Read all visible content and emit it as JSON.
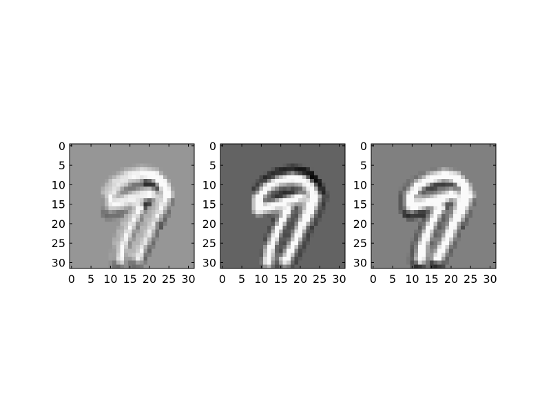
{
  "chart_data": [
    {
      "type": "heatmap",
      "title": "",
      "xlabel": "",
      "ylabel": "",
      "xlim": [
        -0.5,
        31.5
      ],
      "ylim": [
        31.5,
        -0.5
      ],
      "xticks": [
        "0",
        "5",
        "10",
        "15",
        "20",
        "25",
        "30"
      ],
      "yticks": [
        "0",
        "5",
        "10",
        "15",
        "20",
        "25",
        "30"
      ],
      "grid": false,
      "colormap": "gray",
      "background_level": 0.59,
      "content": "filtered handwritten digit 9, mostly edge response",
      "colors": {
        "background": "#979797",
        "dark_edge": "#0a0a0a",
        "bright_stroke": "#f2f2f2"
      }
    },
    {
      "type": "heatmap",
      "title": "",
      "xlabel": "",
      "ylabel": "",
      "xlim": [
        -0.5,
        31.5
      ],
      "ylim": [
        31.5,
        -0.5
      ],
      "xticks": [
        "0",
        "5",
        "10",
        "15",
        "20",
        "25",
        "30"
      ],
      "yticks": [
        "0",
        "5",
        "10",
        "15",
        "20",
        "25",
        "30"
      ],
      "grid": false,
      "colormap": "gray",
      "background_level": 0.39,
      "content": "filtered handwritten digit 9, bright stroke with dark upper edge",
      "colors": {
        "background": "#646464",
        "dark_edge": "#0a0a0a",
        "bright_stroke": "#f8f8f8"
      }
    },
    {
      "type": "heatmap",
      "title": "",
      "xlabel": "",
      "ylabel": "",
      "xlim": [
        -0.5,
        31.5
      ],
      "ylim": [
        31.5,
        -0.5
      ],
      "xticks": [
        "0",
        "5",
        "10",
        "15",
        "20",
        "25",
        "30"
      ],
      "yticks": [
        "0",
        "5",
        "10",
        "15",
        "20",
        "25",
        "30"
      ],
      "grid": false,
      "colormap": "gray",
      "background_level": 0.5,
      "content": "filtered handwritten digit 9, bright upper stroke with dark lower edge",
      "colors": {
        "background": "#808080",
        "dark_edge": "#0a0a0a",
        "bright_stroke": "#f5f5f5"
      }
    }
  ]
}
